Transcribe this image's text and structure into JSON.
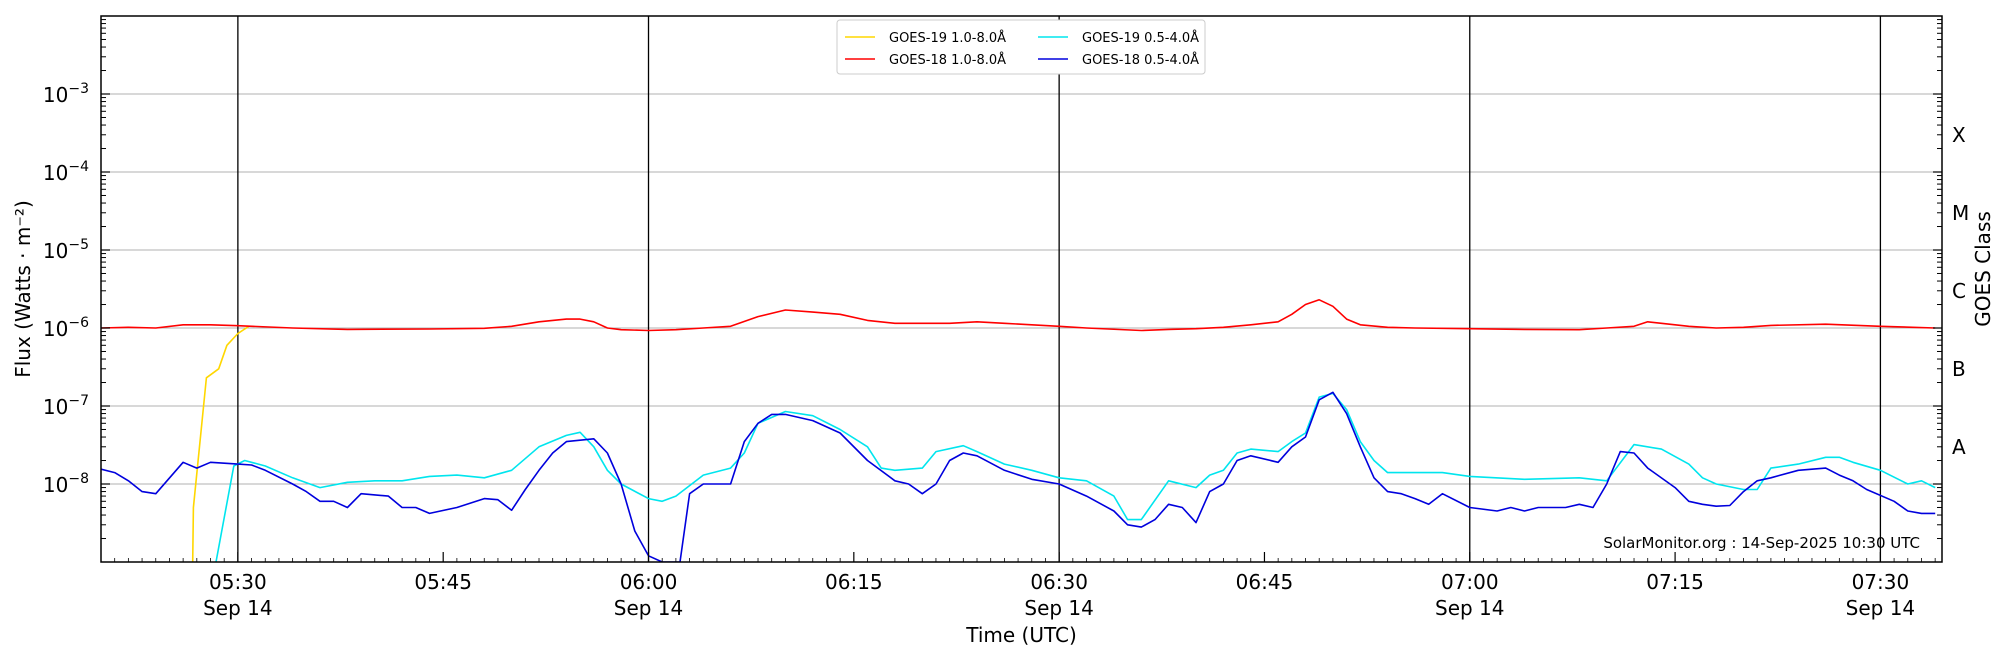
{
  "chart_data": {
    "type": "line",
    "xlabel": "Time (UTC)",
    "ylabel": "Flux (Watts · m⁻²)",
    "right_label": "GOES Class",
    "x_start": "2025-09-14T05:20:00Z",
    "x_end": "2025-09-14T07:34:30Z",
    "y_scale": "log",
    "ylim": [
      1e-09,
      0.01
    ],
    "grid": "horizontal at decades",
    "legend_placement": "top-center",
    "watermark": "SolarMonitor.org : 14-Sep-2025 10:30 UTC",
    "yticks": [
      {
        "value": 1e-08,
        "base": "10",
        "exp": "−8"
      },
      {
        "value": 1e-07,
        "base": "10",
        "exp": "−7"
      },
      {
        "value": 1e-06,
        "base": "10",
        "exp": "−6"
      },
      {
        "value": 1e-05,
        "base": "10",
        "exp": "−5"
      },
      {
        "value": 0.0001,
        "base": "10",
        "exp": "−4"
      },
      {
        "value": 0.001,
        "base": "10",
        "exp": "−3"
      }
    ],
    "xticks": [
      {
        "time": "05:30",
        "date": "Sep 14",
        "minute": 10,
        "vline": true
      },
      {
        "time": "05:45",
        "date": "",
        "minute": 25,
        "vline": false
      },
      {
        "time": "06:00",
        "date": "Sep 14",
        "minute": 40,
        "vline": true
      },
      {
        "time": "06:15",
        "date": "",
        "minute": 55,
        "vline": false
      },
      {
        "time": "06:30",
        "date": "Sep 14",
        "minute": 70,
        "vline": true
      },
      {
        "time": "06:45",
        "date": "",
        "minute": 85,
        "vline": false
      },
      {
        "time": "07:00",
        "date": "Sep 14",
        "minute": 100,
        "vline": true
      },
      {
        "time": "07:15",
        "date": "",
        "minute": 115,
        "vline": false
      },
      {
        "time": "07:30",
        "date": "Sep 14",
        "minute": 130,
        "vline": true
      }
    ],
    "goes_classes": [
      {
        "label": "A",
        "flux": 3e-08
      },
      {
        "label": "B",
        "flux": 3e-07
      },
      {
        "label": "C",
        "flux": 3e-06
      },
      {
        "label": "M",
        "flux": 3e-05
      },
      {
        "label": "X",
        "flux": 0.0003
      }
    ],
    "series": [
      {
        "name": "GOES-19 1.0-8.0Å",
        "color": "#ffd700",
        "points": [
          [
            6.7,
            1e-09
          ],
          [
            6.75,
            5e-09
          ],
          [
            7.7,
            2.3e-07
          ],
          [
            8.6,
            3e-07
          ],
          [
            9.2,
            6e-07
          ],
          [
            10.0,
            8.5e-07
          ],
          [
            10.8,
            1.05e-06
          ]
        ]
      },
      {
        "name": "GOES-18 1.0-8.0Å",
        "color": "#ff0000",
        "points": [
          [
            0,
            1e-06
          ],
          [
            2,
            1.02e-06
          ],
          [
            4,
            1e-06
          ],
          [
            6,
            1.1e-06
          ],
          [
            8,
            1.1e-06
          ],
          [
            10,
            1.07e-06
          ],
          [
            14,
            1e-06
          ],
          [
            18,
            9.6e-07
          ],
          [
            24,
            9.7e-07
          ],
          [
            28,
            9.9e-07
          ],
          [
            30,
            1.05e-06
          ],
          [
            32,
            1.2e-06
          ],
          [
            34,
            1.3e-06
          ],
          [
            35,
            1.3e-06
          ],
          [
            36,
            1.2e-06
          ],
          [
            37,
            1e-06
          ],
          [
            38,
            9.5e-07
          ],
          [
            40,
            9.3e-07
          ],
          [
            42,
            9.5e-07
          ],
          [
            44,
            1e-06
          ],
          [
            46,
            1.05e-06
          ],
          [
            48,
            1.4e-06
          ],
          [
            50,
            1.7e-06
          ],
          [
            52,
            1.6e-06
          ],
          [
            54,
            1.5e-06
          ],
          [
            56,
            1.25e-06
          ],
          [
            58,
            1.15e-06
          ],
          [
            62,
            1.15e-06
          ],
          [
            64,
            1.2e-06
          ],
          [
            66,
            1.15e-06
          ],
          [
            68,
            1.1e-06
          ],
          [
            70,
            1.05e-06
          ],
          [
            72,
            1e-06
          ],
          [
            76,
            9.3e-07
          ],
          [
            78,
            9.6e-07
          ],
          [
            80,
            9.8e-07
          ],
          [
            82,
            1.02e-06
          ],
          [
            84,
            1.1e-06
          ],
          [
            86,
            1.2e-06
          ],
          [
            87,
            1.5e-06
          ],
          [
            88,
            2e-06
          ],
          [
            89,
            2.3e-06
          ],
          [
            90,
            1.9e-06
          ],
          [
            91,
            1.3e-06
          ],
          [
            92,
            1.1e-06
          ],
          [
            94,
            1.02e-06
          ],
          [
            96,
            1e-06
          ],
          [
            100,
            9.8e-07
          ],
          [
            104,
            9.6e-07
          ],
          [
            108,
            9.5e-07
          ],
          [
            110,
            1e-06
          ],
          [
            112,
            1.05e-06
          ],
          [
            113,
            1.2e-06
          ],
          [
            114,
            1.15e-06
          ],
          [
            116,
            1.05e-06
          ],
          [
            118,
            1e-06
          ],
          [
            120,
            1.02e-06
          ],
          [
            122,
            1.08e-06
          ],
          [
            126,
            1.12e-06
          ],
          [
            130,
            1.05e-06
          ],
          [
            134,
            1e-06
          ]
        ]
      },
      {
        "name": "GOES-19 0.5-4.0Å",
        "color": "#00e5ee",
        "points": [
          [
            8.4,
            1e-09
          ],
          [
            9.7,
            1.7e-08
          ],
          [
            10.5,
            2e-08
          ],
          [
            12,
            1.7e-08
          ],
          [
            14,
            1.2e-08
          ],
          [
            16,
            9e-09
          ],
          [
            18,
            1.05e-08
          ],
          [
            20,
            1.1e-08
          ],
          [
            22,
            1.1e-08
          ],
          [
            24,
            1.25e-08
          ],
          [
            26,
            1.3e-08
          ],
          [
            28,
            1.2e-08
          ],
          [
            30,
            1.5e-08
          ],
          [
            32,
            3e-08
          ],
          [
            34,
            4.2e-08
          ],
          [
            35,
            4.6e-08
          ],
          [
            36,
            3e-08
          ],
          [
            37,
            1.5e-08
          ],
          [
            38,
            1e-08
          ],
          [
            40,
            6.5e-09
          ],
          [
            41,
            6e-09
          ],
          [
            42,
            7e-09
          ],
          [
            44,
            1.3e-08
          ],
          [
            46,
            1.6e-08
          ],
          [
            47,
            2.5e-08
          ],
          [
            48,
            6e-08
          ],
          [
            50,
            8.5e-08
          ],
          [
            52,
            7.5e-08
          ],
          [
            54,
            5e-08
          ],
          [
            56,
            3e-08
          ],
          [
            57,
            1.6e-08
          ],
          [
            58,
            1.5e-08
          ],
          [
            60,
            1.6e-08
          ],
          [
            61,
            2.6e-08
          ],
          [
            63,
            3.1e-08
          ],
          [
            64,
            2.6e-08
          ],
          [
            66,
            1.8e-08
          ],
          [
            68,
            1.5e-08
          ],
          [
            70,
            1.2e-08
          ],
          [
            72,
            1.1e-08
          ],
          [
            74,
            7e-09
          ],
          [
            75,
            3.5e-09
          ],
          [
            76,
            3.5e-09
          ],
          [
            78,
            1.1e-08
          ],
          [
            80,
            9e-09
          ],
          [
            81,
            1.3e-08
          ],
          [
            82,
            1.5e-08
          ],
          [
            83,
            2.5e-08
          ],
          [
            84,
            2.8e-08
          ],
          [
            86,
            2.6e-08
          ],
          [
            87,
            3.5e-08
          ],
          [
            88,
            4.5e-08
          ],
          [
            89,
            1.3e-07
          ],
          [
            90,
            1.45e-07
          ],
          [
            91,
            9e-08
          ],
          [
            92,
            3.5e-08
          ],
          [
            93,
            2e-08
          ],
          [
            94,
            1.4e-08
          ],
          [
            98,
            1.4e-08
          ],
          [
            100,
            1.25e-08
          ],
          [
            104,
            1.15e-08
          ],
          [
            108,
            1.2e-08
          ],
          [
            110,
            1.1e-08
          ],
          [
            112,
            3.2e-08
          ],
          [
            114,
            2.8e-08
          ],
          [
            116,
            1.8e-08
          ],
          [
            117,
            1.2e-08
          ],
          [
            118,
            1e-08
          ],
          [
            120,
            8.5e-09
          ],
          [
            121,
            8.5e-09
          ],
          [
            122,
            1.6e-08
          ],
          [
            124,
            1.8e-08
          ],
          [
            126,
            2.2e-08
          ],
          [
            127,
            2.2e-08
          ],
          [
            128,
            1.9e-08
          ],
          [
            130,
            1.5e-08
          ],
          [
            132,
            1e-08
          ],
          [
            133,
            1.1e-08
          ],
          [
            134,
            9e-09
          ]
        ]
      },
      {
        "name": "GOES-18 0.5-4.0Å",
        "color": "#0000dd",
        "points": [
          [
            0,
            1.55e-08
          ],
          [
            1,
            1.4e-08
          ],
          [
            2,
            1.1e-08
          ],
          [
            3,
            8e-09
          ],
          [
            4,
            7.5e-09
          ],
          [
            6,
            1.9e-08
          ],
          [
            7,
            1.6e-08
          ],
          [
            8,
            1.9e-08
          ],
          [
            10,
            1.8e-08
          ],
          [
            11,
            1.75e-08
          ],
          [
            12,
            1.5e-08
          ],
          [
            14,
            1e-08
          ],
          [
            15,
            8e-09
          ],
          [
            16,
            6e-09
          ],
          [
            17,
            6e-09
          ],
          [
            18,
            5e-09
          ],
          [
            19,
            7.5e-09
          ],
          [
            21,
            7e-09
          ],
          [
            22,
            5e-09
          ],
          [
            23,
            5e-09
          ],
          [
            24,
            4.2e-09
          ],
          [
            26,
            5e-09
          ],
          [
            28,
            6.5e-09
          ],
          [
            29,
            6.3e-09
          ],
          [
            30,
            4.6e-09
          ],
          [
            31,
            8.5e-09
          ],
          [
            32,
            1.5e-08
          ],
          [
            33,
            2.5e-08
          ],
          [
            34,
            3.5e-08
          ],
          [
            36,
            3.8e-08
          ],
          [
            37,
            2.5e-08
          ],
          [
            38,
            1e-08
          ],
          [
            39,
            2.5e-09
          ],
          [
            40,
            1.2e-09
          ],
          [
            41,
            1e-09
          ],
          [
            42.3,
            1e-09
          ],
          [
            43,
            7.5e-09
          ],
          [
            44,
            1e-08
          ],
          [
            46,
            1e-08
          ],
          [
            47,
            3.5e-08
          ],
          [
            48,
            6e-08
          ],
          [
            49,
            7.8e-08
          ],
          [
            50,
            7.8e-08
          ],
          [
            52,
            6.5e-08
          ],
          [
            54,
            4.5e-08
          ],
          [
            56,
            2e-08
          ],
          [
            58,
            1.1e-08
          ],
          [
            59,
            1e-08
          ],
          [
            60,
            7.5e-09
          ],
          [
            61,
            1e-08
          ],
          [
            62,
            2e-08
          ],
          [
            63,
            2.5e-08
          ],
          [
            64,
            2.3e-08
          ],
          [
            66,
            1.5e-08
          ],
          [
            68,
            1.15e-08
          ],
          [
            70,
            1e-08
          ],
          [
            72,
            7e-09
          ],
          [
            74,
            4.5e-09
          ],
          [
            75,
            3e-09
          ],
          [
            76,
            2.8e-09
          ],
          [
            77,
            3.5e-09
          ],
          [
            78,
            5.5e-09
          ],
          [
            79,
            5e-09
          ],
          [
            80,
            3.2e-09
          ],
          [
            81,
            8e-09
          ],
          [
            82,
            1e-08
          ],
          [
            83,
            2e-08
          ],
          [
            84,
            2.3e-08
          ],
          [
            86,
            1.9e-08
          ],
          [
            87,
            3e-08
          ],
          [
            88,
            4e-08
          ],
          [
            89,
            1.2e-07
          ],
          [
            90,
            1.5e-07
          ],
          [
            91,
            8e-08
          ],
          [
            92,
            3e-08
          ],
          [
            93,
            1.2e-08
          ],
          [
            94,
            8e-09
          ],
          [
            95,
            7.5e-09
          ],
          [
            96,
            6.5e-09
          ],
          [
            97,
            5.5e-09
          ],
          [
            98,
            7.5e-09
          ],
          [
            100,
            5e-09
          ],
          [
            102,
            4.5e-09
          ],
          [
            103,
            5e-09
          ],
          [
            104,
            4.5e-09
          ],
          [
            105,
            5e-09
          ],
          [
            106,
            5e-09
          ],
          [
            107,
            5e-09
          ],
          [
            108,
            5.5e-09
          ],
          [
            109,
            5e-09
          ],
          [
            110,
            1e-08
          ],
          [
            111,
            2.6e-08
          ],
          [
            112,
            2.5e-08
          ],
          [
            113,
            1.6e-08
          ],
          [
            115,
            9e-09
          ],
          [
            116,
            6e-09
          ],
          [
            117,
            5.5e-09
          ],
          [
            118,
            5.2e-09
          ],
          [
            119,
            5.3e-09
          ],
          [
            120,
            8e-09
          ],
          [
            121,
            1.1e-08
          ],
          [
            122,
            1.2e-08
          ],
          [
            124,
            1.5e-08
          ],
          [
            126,
            1.6e-08
          ],
          [
            127,
            1.3e-08
          ],
          [
            128,
            1.1e-08
          ],
          [
            129,
            8.5e-09
          ],
          [
            131,
            6e-09
          ],
          [
            132,
            4.5e-09
          ],
          [
            133,
            4.2e-09
          ],
          [
            134,
            4.2e-09
          ]
        ]
      }
    ]
  }
}
